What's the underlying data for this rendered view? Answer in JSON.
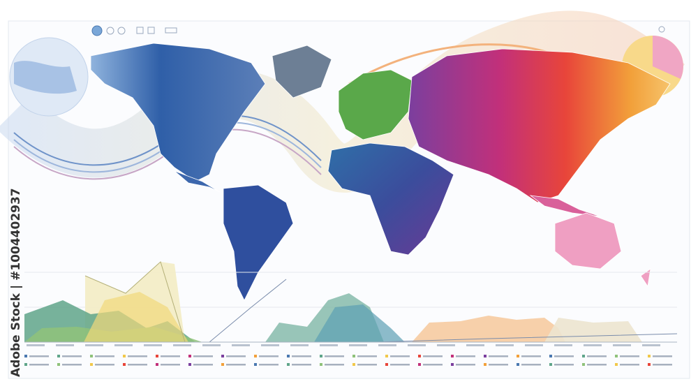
{
  "watermark": "Adobe Stock | #1004402937"
}
